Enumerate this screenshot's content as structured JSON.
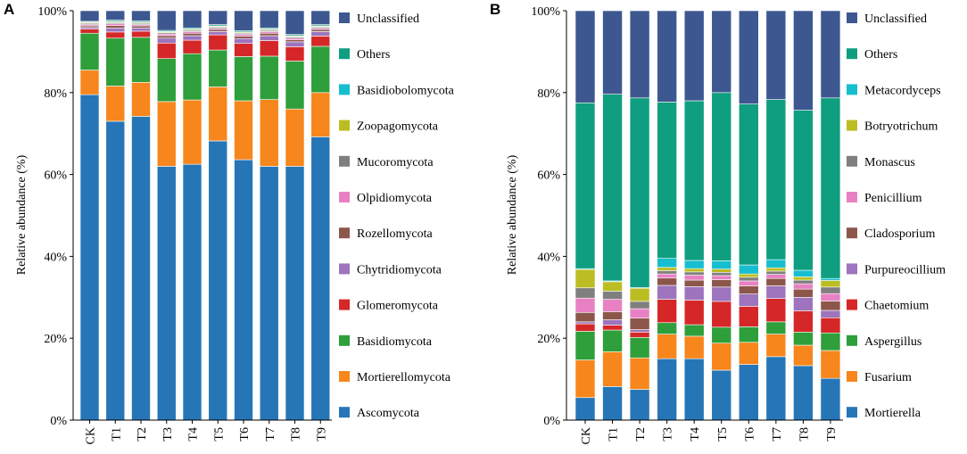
{
  "chart_data": [
    {
      "type": "bar",
      "stacked": true,
      "panel_label": "A",
      "title": "",
      "xlabel": "",
      "ylabel": "Relative abundance (%)",
      "ylim": [
        0,
        100
      ],
      "yticks": [
        "0%",
        "20%",
        "40%",
        "60%",
        "80%",
        "100%"
      ],
      "categories": [
        "CK",
        "T1",
        "T2",
        "T3",
        "T4",
        "T5",
        "T6",
        "T7",
        "T8",
        "T9"
      ],
      "legend_position": "right",
      "series": [
        {
          "name": "Ascomycota",
          "color": "#2676b7",
          "values": [
            79.5,
            73.0,
            74.2,
            62.0,
            62.5,
            68.2,
            63.6,
            62.0,
            62.0,
            69.2
          ]
        },
        {
          "name": "Mortierellomycota",
          "color": "#f7861c",
          "values": [
            6.0,
            8.6,
            8.3,
            15.8,
            15.7,
            13.2,
            14.4,
            16.3,
            14.0,
            10.8
          ]
        },
        {
          "name": "Basidiomycota",
          "color": "#2e9f3a",
          "values": [
            9.0,
            11.7,
            11.0,
            10.5,
            11.3,
            9.0,
            10.8,
            10.6,
            11.7,
            11.3
          ]
        },
        {
          "name": "Glomeromycota",
          "color": "#d62728",
          "values": [
            1.0,
            1.5,
            1.5,
            3.8,
            3.3,
            3.7,
            3.2,
            3.8,
            3.5,
            2.5
          ]
        },
        {
          "name": "Chytridiomycota",
          "color": "#9d74bd",
          "values": [
            0.4,
            1.0,
            0.8,
            1.2,
            1.1,
            0.8,
            1.2,
            1.2,
            1.2,
            1.1
          ]
        },
        {
          "name": "Rozellomycota",
          "color": "#8c564b",
          "values": [
            0.4,
            0.6,
            0.5,
            0.6,
            0.6,
            0.5,
            0.6,
            0.6,
            0.5,
            0.5
          ]
        },
        {
          "name": "Olpidiomycota",
          "color": "#e881c4",
          "values": [
            0.3,
            0.4,
            0.3,
            0.4,
            0.4,
            0.3,
            0.4,
            0.4,
            0.4,
            0.3
          ]
        },
        {
          "name": "Mucoromycota",
          "color": "#7f7f7f",
          "values": [
            0.3,
            0.3,
            0.3,
            0.3,
            0.3,
            0.3,
            0.3,
            0.3,
            0.3,
            0.3
          ]
        },
        {
          "name": "Zoopagomycota",
          "color": "#bcbd22",
          "values": [
            0.2,
            0.2,
            0.2,
            0.2,
            0.2,
            0.2,
            0.2,
            0.2,
            0.2,
            0.2
          ]
        },
        {
          "name": "Basidiobolomycota",
          "color": "#17becf",
          "values": [
            0.1,
            0.1,
            0.1,
            0.1,
            0.1,
            0.1,
            0.1,
            0.1,
            0.1,
            0.1
          ]
        },
        {
          "name": "Others",
          "color": "#109e80",
          "values": [
            0.2,
            0.3,
            0.3,
            0.3,
            0.3,
            0.3,
            0.3,
            0.3,
            0.3,
            0.3
          ]
        },
        {
          "name": "Unclassified",
          "color": "#3d5890",
          "values": [
            2.6,
            2.3,
            2.5,
            4.8,
            4.2,
            3.4,
            4.9,
            4.2,
            5.8,
            3.4
          ]
        }
      ]
    },
    {
      "type": "bar",
      "stacked": true,
      "panel_label": "B",
      "title": "",
      "xlabel": "",
      "ylabel": "Relative abundance (%)",
      "ylim": [
        0,
        100
      ],
      "yticks": [
        "0%",
        "20%",
        "40%",
        "60%",
        "80%",
        "100%"
      ],
      "categories": [
        "CK",
        "T1",
        "T2",
        "T3",
        "T4",
        "T5",
        "T6",
        "T7",
        "T8",
        "T9"
      ],
      "legend_position": "right",
      "series": [
        {
          "name": "Mortierella",
          "color": "#2676b7",
          "values": [
            5.5,
            8.2,
            7.5,
            15.0,
            15.0,
            12.2,
            13.6,
            15.5,
            13.3,
            10.2
          ]
        },
        {
          "name": "Fusarium",
          "color": "#f7861c",
          "values": [
            9.2,
            8.5,
            7.7,
            6.0,
            5.5,
            6.6,
            5.4,
            5.5,
            5.0,
            6.8
          ]
        },
        {
          "name": "Aspergillus",
          "color": "#2e9f3a",
          "values": [
            7.0,
            5.3,
            5.0,
            2.8,
            2.8,
            3.9,
            3.8,
            3.0,
            3.2,
            4.3
          ]
        },
        {
          "name": "Chaetomium",
          "color": "#d62728",
          "values": [
            1.8,
            1.2,
            1.3,
            5.7,
            6.0,
            6.3,
            5.0,
            5.7,
            5.2,
            3.7
          ]
        },
        {
          "name": "Purpureocillium",
          "color": "#9d74bd",
          "values": [
            0.5,
            1.3,
            0.6,
            3.4,
            3.3,
            3.5,
            3.0,
            3.1,
            3.3,
            1.8
          ]
        },
        {
          "name": "Cladosporium",
          "color": "#8c564b",
          "values": [
            2.3,
            2.0,
            2.8,
            1.8,
            1.6,
            1.8,
            2.0,
            1.8,
            2.0,
            2.3
          ]
        },
        {
          "name": "Penicillium",
          "color": "#e881c4",
          "values": [
            3.5,
            3.0,
            2.3,
            1.0,
            1.2,
            1.0,
            1.2,
            1.0,
            1.3,
            1.8
          ]
        },
        {
          "name": "Monascus",
          "color": "#7f7f7f",
          "values": [
            2.5,
            2.0,
            1.8,
            0.8,
            0.8,
            0.8,
            0.9,
            0.8,
            0.9,
            1.6
          ]
        },
        {
          "name": "Botryotrichum",
          "color": "#bcbd22",
          "values": [
            4.5,
            2.3,
            3.2,
            0.8,
            0.8,
            0.8,
            0.8,
            0.8,
            0.8,
            1.6
          ]
        },
        {
          "name": "Metacordyceps",
          "color": "#17becf",
          "values": [
            0.2,
            0.2,
            0.2,
            2.2,
            2.0,
            2.0,
            2.2,
            2.0,
            1.6,
            0.5
          ]
        },
        {
          "name": "Others",
          "color": "#109e80",
          "values": [
            40.5,
            45.6,
            46.3,
            38.2,
            39.0,
            41.1,
            39.3,
            39.1,
            39.1,
            44.1
          ]
        },
        {
          "name": "Unclassified",
          "color": "#3d5890",
          "values": [
            22.5,
            20.4,
            21.3,
            22.3,
            22.0,
            20.0,
            22.8,
            21.7,
            24.3,
            21.3
          ]
        }
      ]
    }
  ]
}
